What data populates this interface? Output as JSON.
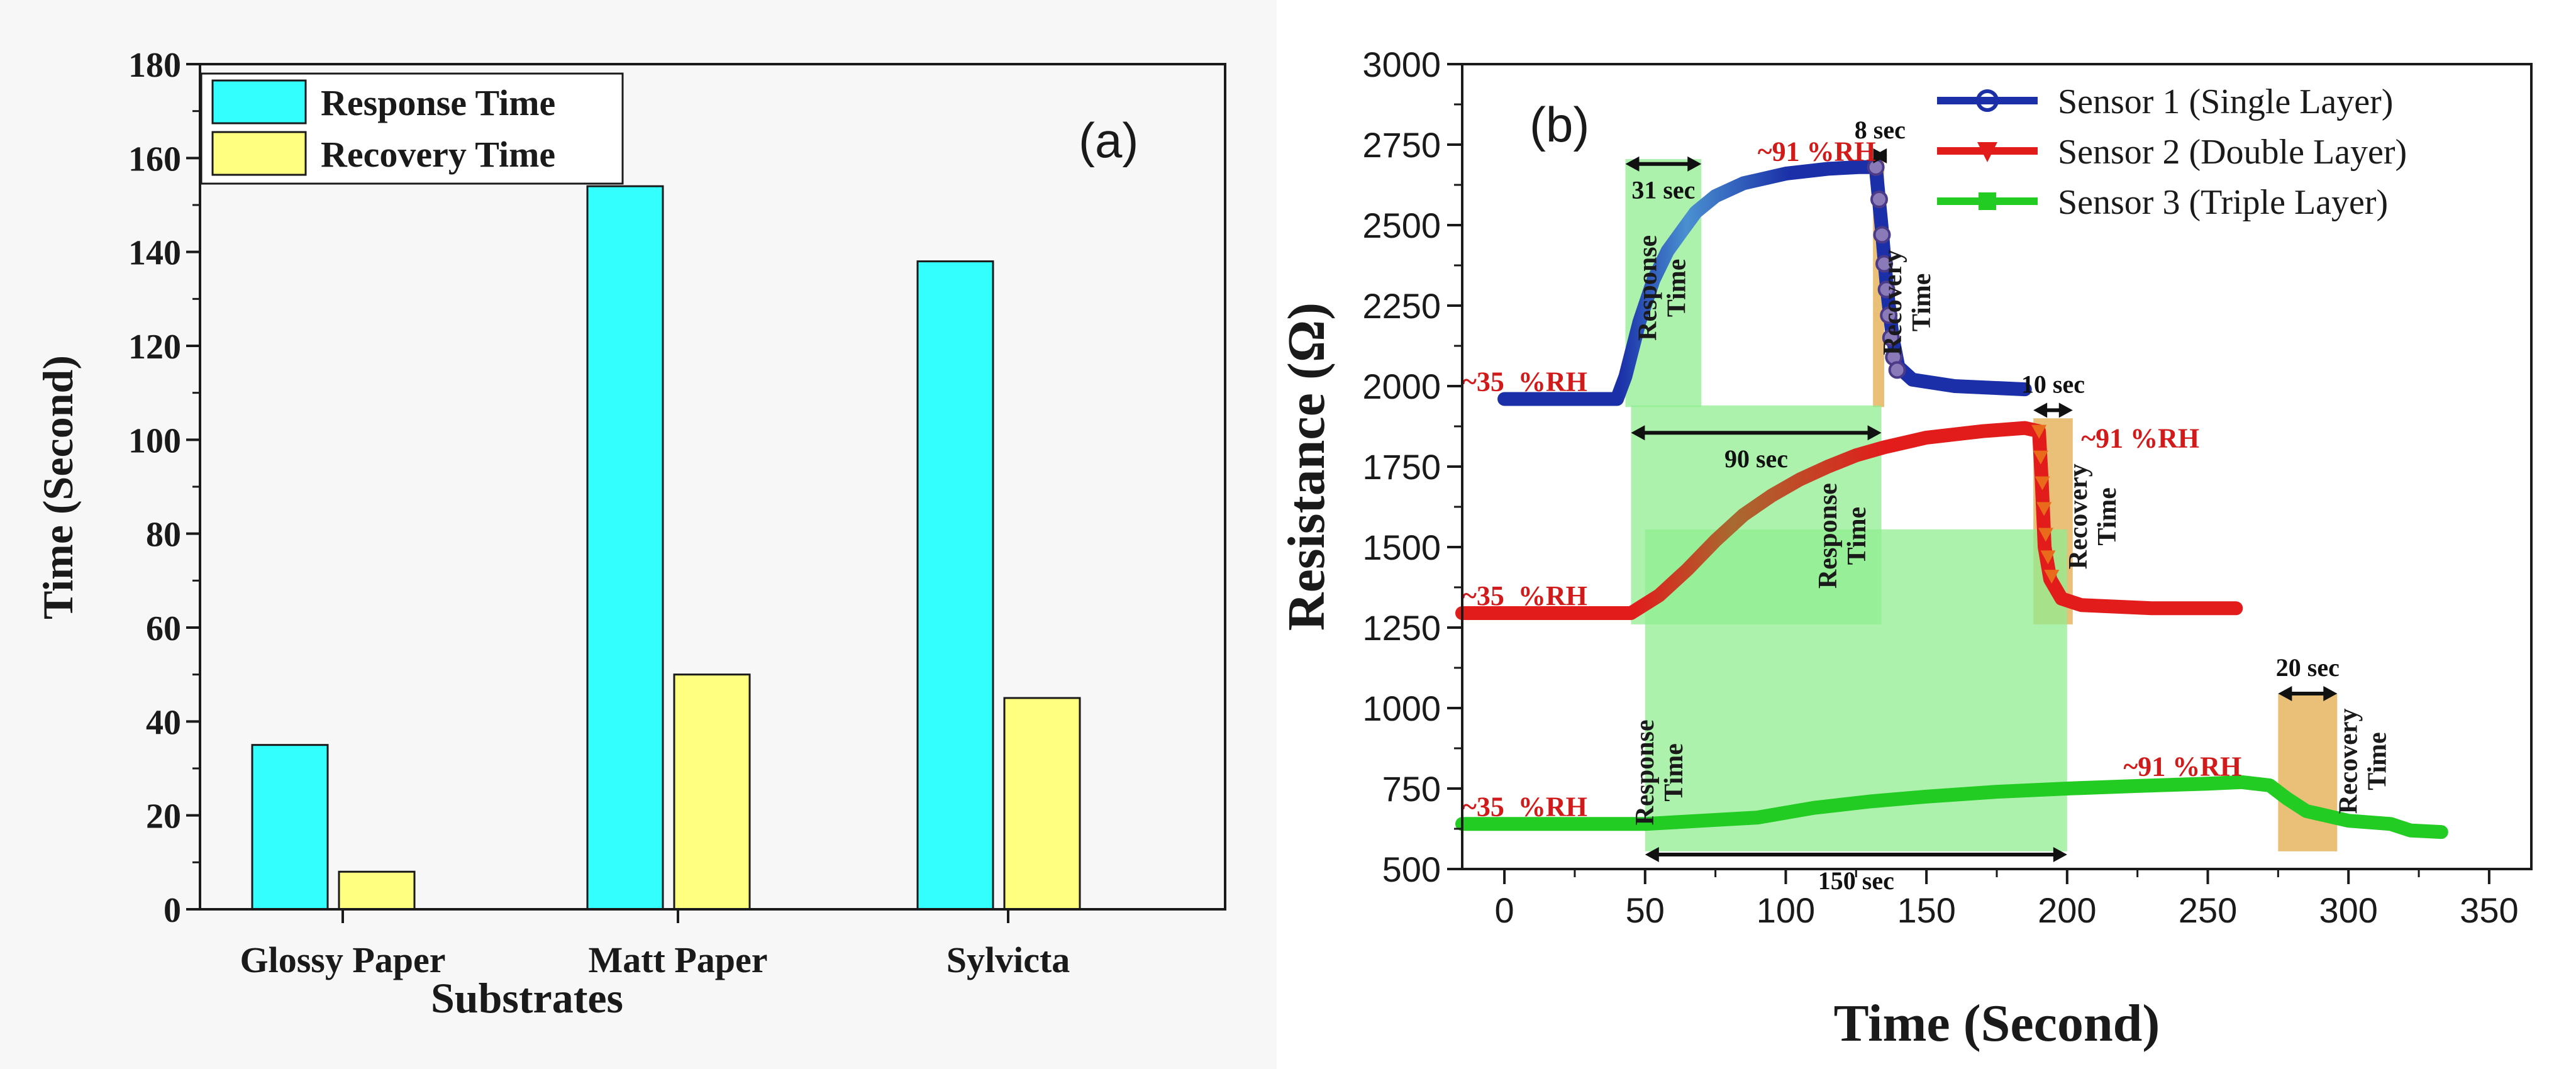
{
  "chart_data": [
    {
      "type": "bar",
      "panel_label": "(a)",
      "title": "",
      "xlabel": "Substrates",
      "ylabel": "Time (Second)",
      "ylim": [
        0,
        180
      ],
      "yticks": [
        0,
        20,
        40,
        60,
        80,
        100,
        120,
        140,
        160,
        180
      ],
      "grid": false,
      "legend_position": "top-left",
      "categories": [
        "Glossy Paper",
        "Matt Paper",
        "Sylvicta"
      ],
      "series": [
        {
          "name": "Response Time",
          "color": "#33ffff",
          "values": [
            35,
            154,
            138
          ]
        },
        {
          "name": "Recovery Time",
          "color": "#ffff80",
          "values": [
            8,
            50,
            45
          ]
        }
      ]
    },
    {
      "type": "line",
      "panel_label": "(b)",
      "title": "",
      "xlabel": "Time (Second)",
      "ylabel": "Resistance (Ω)",
      "xlim": [
        -15,
        365
      ],
      "ylim": [
        500,
        3000
      ],
      "xticks": [
        0,
        50,
        100,
        150,
        200,
        250,
        300,
        350
      ],
      "yticks": [
        500,
        750,
        1000,
        1250,
        1500,
        1750,
        2000,
        2250,
        2500,
        2750,
        3000
      ],
      "grid": false,
      "legend_position": "top-right",
      "series": [
        {
          "name": "Sensor 1 (Single Layer)",
          "color": "#1a2fa8",
          "fade_color": "#4a90d0",
          "marker": "circle",
          "points": [
            [
              0,
              1960
            ],
            [
              40,
              1960
            ],
            [
              43,
              2030
            ],
            [
              48,
              2200
            ],
            [
              53,
              2330
            ],
            [
              58,
              2420
            ],
            [
              63,
              2480
            ],
            [
              68,
              2540
            ],
            [
              75,
              2590
            ],
            [
              85,
              2630
            ],
            [
              100,
              2660
            ],
            [
              115,
              2675
            ],
            [
              126,
              2680
            ],
            [
              132,
              2680
            ],
            [
              134,
              2500
            ],
            [
              136,
              2300
            ],
            [
              138,
              2150
            ],
            [
              140,
              2060
            ],
            [
              145,
              2020
            ],
            [
              160,
              2000
            ],
            [
              185,
              1990
            ]
          ]
        },
        {
          "name": "Sensor 2 (Double Layer)",
          "color": "#e21b1b",
          "fade_color": "#a86a30",
          "marker": "triangle-down",
          "points": [
            [
              -15,
              1295
            ],
            [
              45,
              1295
            ],
            [
              55,
              1350
            ],
            [
              65,
              1430
            ],
            [
              75,
              1520
            ],
            [
              85,
              1600
            ],
            [
              95,
              1660
            ],
            [
              105,
              1710
            ],
            [
              115,
              1750
            ],
            [
              125,
              1785
            ],
            [
              135,
              1810
            ],
            [
              150,
              1840
            ],
            [
              170,
              1860
            ],
            [
              185,
              1870
            ],
            [
              190,
              1860
            ],
            [
              191,
              1700
            ],
            [
              192,
              1500
            ],
            [
              194,
              1400
            ],
            [
              198,
              1340
            ],
            [
              205,
              1320
            ],
            [
              230,
              1310
            ],
            [
              260,
              1310
            ]
          ]
        },
        {
          "name": "Sensor 3 (Triple Layer)",
          "color": "#22cc22",
          "fade_color": "#22cc22",
          "marker": "square",
          "points": [
            [
              -15,
              640
            ],
            [
              20,
              640
            ],
            [
              50,
              640
            ],
            [
              70,
              650
            ],
            [
              90,
              660
            ],
            [
              110,
              690
            ],
            [
              130,
              710
            ],
            [
              150,
              725
            ],
            [
              175,
              740
            ],
            [
              200,
              750
            ],
            [
              225,
              758
            ],
            [
              250,
              765
            ],
            [
              262,
              770
            ],
            [
              272,
              760
            ],
            [
              278,
              720
            ],
            [
              285,
              680
            ],
            [
              300,
              650
            ],
            [
              315,
              640
            ],
            [
              322,
              620
            ],
            [
              333,
              615
            ]
          ]
        }
      ],
      "shaded_regions": [
        {
          "kind": "response",
          "color": "#90ee90",
          "x": [
            43,
            70
          ],
          "y": [
            1935,
            2705
          ]
        },
        {
          "kind": "recovery",
          "color": "#e8b868",
          "x": [
            131,
            135
          ],
          "y": [
            1935,
            2705
          ]
        },
        {
          "kind": "response",
          "color": "#90ee90",
          "x": [
            45,
            134
          ],
          "y": [
            1260,
            1940
          ]
        },
        {
          "kind": "recovery",
          "color": "#e8b868",
          "x": [
            188,
            202
          ],
          "y": [
            1260,
            1900
          ]
        },
        {
          "kind": "response",
          "color": "#90ee90",
          "x": [
            50,
            200
          ],
          "y": [
            555,
            1555
          ]
        },
        {
          "kind": "recovery",
          "color": "#e8b868",
          "x": [
            275,
            296
          ],
          "y": [
            555,
            1045
          ]
        }
      ],
      "time_arrows": [
        {
          "x": [
            43,
            70
          ],
          "y": 2690,
          "label": "31 sec"
        },
        {
          "x": [
            131,
            136
          ],
          "y": 2715,
          "label": "8 sec"
        },
        {
          "x": [
            45,
            134
          ],
          "y": 1855,
          "label": "90 sec"
        },
        {
          "x": [
            188,
            202
          ],
          "y": 1925,
          "label": "10 sec"
        },
        {
          "x": [
            50,
            200
          ],
          "y": 545,
          "label": "150 sec"
        },
        {
          "x": [
            275,
            296
          ],
          "y": 1045,
          "label": "20 sec"
        }
      ],
      "annotations": [
        {
          "text": "~35  %RH",
          "x": -15,
          "y": 1985,
          "role": "rh",
          "color": "#d11b1b"
        },
        {
          "text": "~91 %RH",
          "x": 90,
          "y": 2700,
          "role": "rh",
          "color": "#d11b1b"
        },
        {
          "text": "~35  %RH",
          "x": -15,
          "y": 1320,
          "role": "rh",
          "color": "#d11b1b"
        },
        {
          "text": "~91 %RH",
          "x": 205,
          "y": 1810,
          "role": "rh",
          "color": "#d11b1b"
        },
        {
          "text": "~35  %RH",
          "x": -15,
          "y": 665,
          "role": "rh",
          "color": "#d11b1b"
        },
        {
          "text": "~91 %RH",
          "x": 220,
          "y": 790,
          "role": "rh",
          "color": "#d11b1b"
        },
        {
          "text": "Response\nTime",
          "x": 54,
          "y": 2305,
          "role": "label-vertical",
          "color": "#1a1a1a"
        },
        {
          "text": "Recovery\nTime",
          "x": 141,
          "y": 2260,
          "role": "label-vertical",
          "color": "#1a1a1a"
        },
        {
          "text": "Response\nTime",
          "x": 118,
          "y": 1535,
          "role": "label-vertical",
          "color": "#1a1a1a"
        },
        {
          "text": "Recovery\nTime",
          "x": 207,
          "y": 1595,
          "role": "label-vertical",
          "color": "#1a1a1a"
        },
        {
          "text": "Response\nTime",
          "x": 53,
          "y": 800,
          "role": "label-vertical",
          "color": "#1a1a1a"
        },
        {
          "text": "Recovery\nTime",
          "x": 303,
          "y": 835,
          "role": "label-vertical",
          "color": "#1a1a1a"
        }
      ]
    }
  ]
}
